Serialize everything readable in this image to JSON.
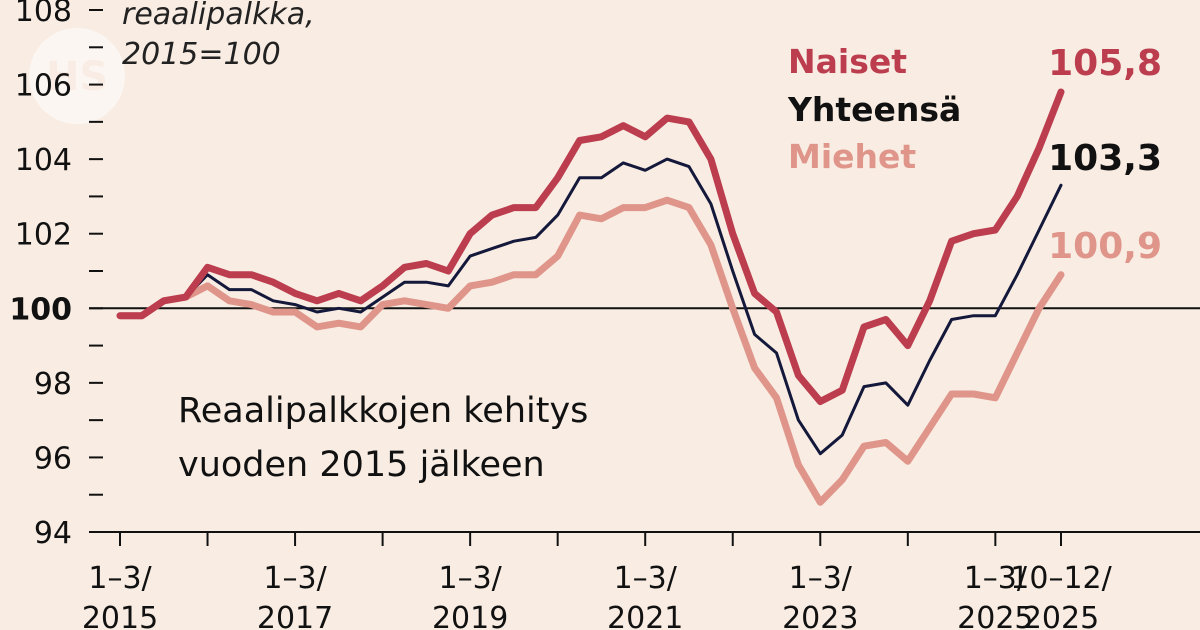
{
  "logo_text": "HS",
  "chart_data": {
    "type": "line",
    "ylabel_lines": [
      "reaalipalkka,",
      "2015=100"
    ],
    "subtitle_lines": [
      "Reaalipalkkojen kehitys",
      "vuoden 2015 jälkeen"
    ],
    "ylim": [
      94,
      108
    ],
    "yticks": [
      94,
      96,
      98,
      100,
      102,
      104,
      106,
      108
    ],
    "ytick_labels": [
      "94",
      "96",
      "98",
      "100",
      "102",
      "104",
      "106",
      "108"
    ],
    "reference_line": 100,
    "xtick_labels": [
      {
        "lines": [
          "1–3/",
          "2015"
        ],
        "index": 0
      },
      {
        "lines": [
          "1–3/",
          "2017"
        ],
        "index": 8
      },
      {
        "lines": [
          "1–3/",
          "2019"
        ],
        "index": 16
      },
      {
        "lines": [
          "1–3/",
          "2021"
        ],
        "index": 24
      },
      {
        "lines": [
          "1–3/",
          "2023"
        ],
        "index": 32
      },
      {
        "lines": [
          "1–3/",
          "2025"
        ],
        "index": 40
      },
      {
        "lines": [
          "10–12/",
          "2025"
        ],
        "index": 43
      }
    ],
    "n_points": 44,
    "series": [
      {
        "name": "Miehet",
        "color": "#e0958a",
        "end_label": "100,9",
        "values": [
          99.8,
          99.8,
          100.2,
          100.3,
          100.6,
          100.2,
          100.1,
          99.9,
          99.9,
          99.5,
          99.6,
          99.5,
          100.1,
          100.2,
          100.1,
          100.0,
          100.6,
          100.7,
          100.9,
          100.9,
          101.4,
          102.5,
          102.4,
          102.7,
          102.7,
          102.9,
          102.7,
          101.7,
          100.0,
          98.4,
          97.6,
          95.8,
          94.8,
          95.4,
          96.3,
          96.4,
          95.9,
          96.8,
          97.7,
          97.7,
          97.6,
          98.8,
          100.0,
          100.9
        ]
      },
      {
        "name": "Yhteensä",
        "color": "#14183a",
        "end_label": "103,3",
        "values": [
          99.8,
          99.8,
          100.2,
          100.3,
          100.9,
          100.5,
          100.5,
          100.2,
          100.1,
          99.9,
          100.0,
          99.9,
          100.3,
          100.7,
          100.7,
          100.6,
          101.4,
          101.6,
          101.8,
          101.9,
          102.5,
          103.5,
          103.5,
          103.9,
          103.7,
          104.0,
          103.8,
          102.8,
          101.0,
          99.3,
          98.8,
          97.0,
          96.1,
          96.6,
          97.9,
          98.0,
          97.4,
          98.6,
          99.7,
          99.8,
          99.8,
          100.9,
          102.1,
          103.3
        ]
      },
      {
        "name": "Naiset",
        "color": "#bb3d4e",
        "end_label": "105,8",
        "values": [
          99.8,
          99.8,
          100.2,
          100.3,
          101.1,
          100.9,
          100.9,
          100.7,
          100.4,
          100.2,
          100.4,
          100.2,
          100.6,
          101.1,
          101.2,
          101.0,
          102.0,
          102.5,
          102.7,
          102.7,
          103.5,
          104.5,
          104.6,
          104.9,
          104.6,
          105.1,
          105.0,
          104.0,
          102.0,
          100.4,
          99.9,
          98.2,
          97.5,
          97.8,
          99.5,
          99.7,
          99.0,
          100.2,
          101.8,
          102.0,
          102.1,
          103.0,
          104.3,
          105.8
        ]
      }
    ]
  }
}
